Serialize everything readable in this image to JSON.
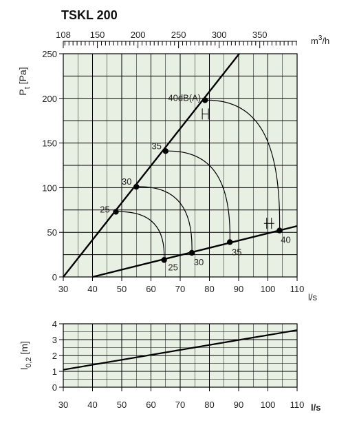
{
  "title": "TSKL 200",
  "colors": {
    "plot_bg": "#e7f0e3",
    "grid": "#000000",
    "line": "#000000"
  },
  "chart_data": [
    {
      "type": "line",
      "title": "TSKL 200",
      "xlabel": "l/s",
      "ylabel": "Pt [Pa]",
      "ylabel_main": "P",
      "ylabel_sub": "t",
      "ylabel_unit": "[Pa]",
      "xlim": [
        30,
        110
      ],
      "ylim": [
        0,
        250
      ],
      "xticks": [
        30,
        40,
        50,
        60,
        70,
        80,
        90,
        100,
        110
      ],
      "yticks": [
        0,
        50,
        100,
        150,
        200,
        250
      ],
      "grid": true,
      "top_axis": {
        "label": "m3/h",
        "label_main": "m",
        "label_sup": "3",
        "label_tail": "/h",
        "ticks": [
          108,
          150,
          200,
          250,
          300,
          350
        ],
        "ls_per_unit": 0.27778
      },
      "series": [
        {
          "role": "upper-characteristic",
          "x": [
            30,
            90.2
          ],
          "y": [
            0,
            250
          ]
        },
        {
          "role": "lower-characteristic",
          "x": [
            40,
            110
          ],
          "y": [
            0,
            57
          ]
        }
      ],
      "sound_curves": [
        {
          "label": "25",
          "upper": {
            "x": 48,
            "y": 73
          },
          "lower": {
            "x": 64.5,
            "y": 19
          }
        },
        {
          "label": "30",
          "upper": {
            "x": 55,
            "y": 101
          },
          "lower": {
            "x": 74,
            "y": 27
          }
        },
        {
          "label": "35",
          "upper": {
            "x": 65,
            "y": 141
          },
          "lower": {
            "x": 87,
            "y": 39
          }
        },
        {
          "label": "40dB(A)",
          "lower_label": "40",
          "upper": {
            "x": 78.5,
            "y": 198
          },
          "lower": {
            "x": 104,
            "y": 52
          }
        }
      ]
    },
    {
      "type": "line",
      "xlabel": "l/s",
      "ylabel": "l0,2 [m]",
      "ylabel_main": "l",
      "ylabel_sub": "0,2",
      "ylabel_unit": "[m]",
      "xlim": [
        30,
        110
      ],
      "ylim": [
        0,
        4
      ],
      "xticks": [
        30,
        40,
        50,
        60,
        70,
        80,
        90,
        100,
        110
      ],
      "yticks": [
        0,
        1,
        2,
        3,
        4
      ],
      "grid": true,
      "series": [
        {
          "role": "throw",
          "x": [
            30,
            110
          ],
          "y": [
            1.1,
            3.6
          ]
        }
      ]
    }
  ]
}
